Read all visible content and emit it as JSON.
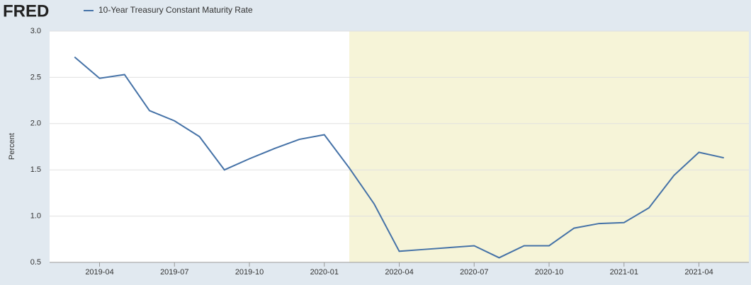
{
  "chart_data": {
    "type": "line",
    "source": "FRED",
    "ylabel": "Percent",
    "x": [
      "2019-03",
      "2019-04",
      "2019-05",
      "2019-06",
      "2019-07",
      "2019-08",
      "2019-09",
      "2019-10",
      "2019-11",
      "2019-12",
      "2020-01",
      "2020-02",
      "2020-03",
      "2020-04",
      "2020-05",
      "2020-06",
      "2020-07",
      "2020-08",
      "2020-09",
      "2020-10",
      "2020-11",
      "2020-12",
      "2021-01",
      "2021-02",
      "2021-03",
      "2021-04",
      "2021-05"
    ],
    "series": [
      {
        "name": "10-Year Treasury Constant Maturity Rate",
        "color": "#4572a7",
        "values": [
          2.72,
          2.49,
          2.53,
          2.14,
          2.03,
          1.86,
          1.5,
          1.62,
          1.73,
          1.83,
          1.88,
          1.52,
          1.13,
          0.62,
          0.64,
          0.66,
          0.68,
          0.55,
          0.68,
          0.68,
          0.87,
          0.92,
          0.93,
          1.09,
          1.44,
          1.69,
          1.63
        ]
      }
    ],
    "xlim": [
      "2019-02",
      "2021-06"
    ],
    "xticks": [
      "2019-04",
      "2019-07",
      "2019-10",
      "2020-01",
      "2020-04",
      "2020-07",
      "2020-10",
      "2021-01",
      "2021-04"
    ],
    "ylim": [
      0.5,
      3.0
    ],
    "yticks": [
      0.5,
      {
        "value": 1,
        "label": "1.0"
      },
      1.5,
      {
        "value": 2,
        "label": "2.0"
      },
      2.5,
      {
        "value": 3,
        "label": "3.0"
      }
    ],
    "grid": true,
    "shade_start": "2020-02",
    "shade_color": "#f6f4d8"
  }
}
